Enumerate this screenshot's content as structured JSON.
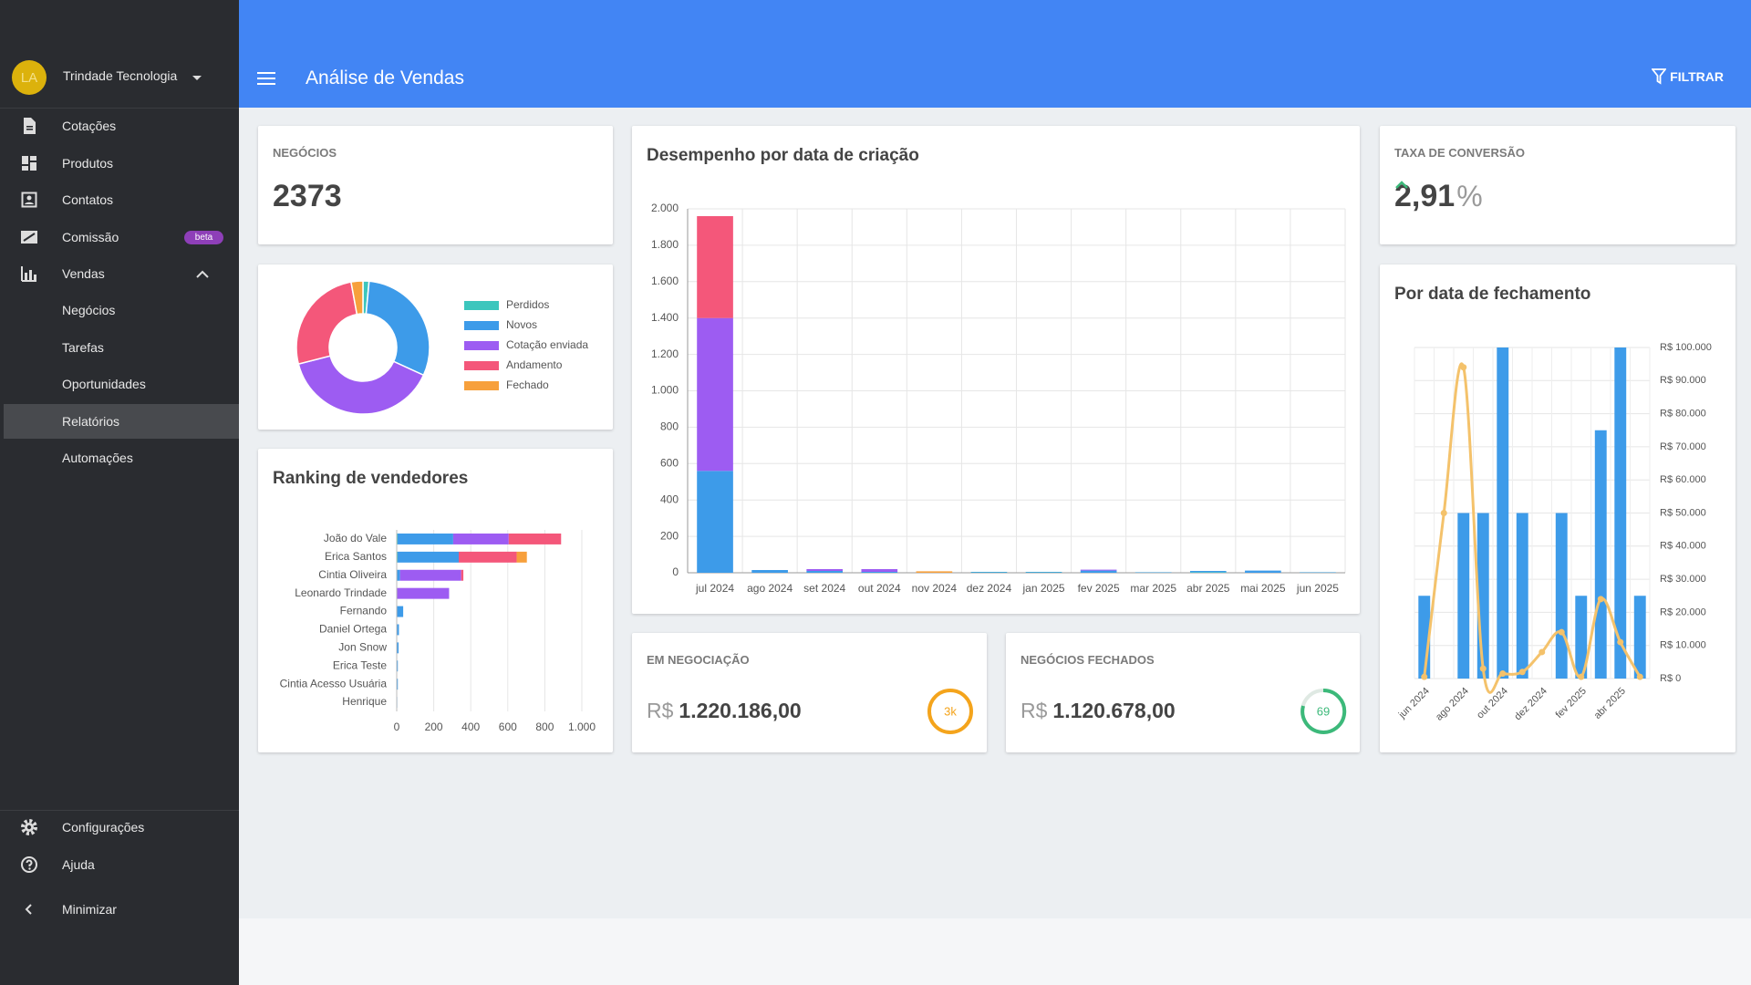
{
  "sidebar": {
    "avatar": "LA",
    "company": "Trindade Tecnologia",
    "menu": [
      "Cotações",
      "Produtos",
      "Contatos",
      "Comissão",
      "Vendas"
    ],
    "badge": "beta",
    "submenu": [
      "Negócios",
      "Tarefas",
      "Oportunidades",
      "Relatórios",
      "Automações"
    ],
    "footer": [
      "Configurações",
      "Ajuda",
      "Minimizar"
    ]
  },
  "header": {
    "title": "Análise de Vendas",
    "filter": "FILTRAR"
  },
  "kpis": {
    "deals": {
      "label": "NEGÓCIOS",
      "value": "2373"
    },
    "conversion": {
      "label": "TAXA DE CONVERSÃO",
      "value": "2,91",
      "unit": "%"
    },
    "negotiating": {
      "label": "EM NEGOCIAÇÃO",
      "currency": "R$",
      "value": "1.220.186,00",
      "badge": "3k"
    },
    "closed": {
      "label": "NEGÓCIOS FECHADOS",
      "currency": "R$",
      "value": "1.120.678,00",
      "badge": "69"
    }
  },
  "chart_data": [
    {
      "type": "donut",
      "categories": [
        "Perdidos",
        "Novos",
        "Cotação enviada",
        "Andamento",
        "Fechado"
      ],
      "values": [
        35,
        720,
        930,
        620,
        68
      ],
      "colors": [
        "#3cc6bd",
        "#3d9be9",
        "#9d5cf2",
        "#f4577a",
        "#f7a03c"
      ],
      "legend": "right"
    },
    {
      "type": "bar",
      "horizontal": true,
      "stacked": true,
      "title": "Ranking de vendedores",
      "categories": [
        "João do Vale",
        "Erica Santos",
        "Cintia Oliveira",
        "Leonardo Trindade",
        "Fernando",
        "Daniel Ortega",
        "Jon Snow",
        "Erica Teste",
        "Cintia Acesso Usuária",
        "Henrique"
      ],
      "series": [
        {
          "color": "#3cc6bd",
          "values": [
            5,
            5,
            0,
            0,
            0,
            0,
            0,
            0,
            0,
            0
          ]
        },
        {
          "color": "#3d9be9",
          "values": [
            300,
            330,
            18,
            0,
            35,
            12,
            10,
            6,
            6,
            3
          ]
        },
        {
          "color": "#9d5cf2",
          "values": [
            300,
            0,
            330,
            283,
            0,
            0,
            0,
            0,
            0,
            0
          ]
        },
        {
          "color": "#f4577a",
          "values": [
            283,
            313,
            12,
            0,
            0,
            0,
            0,
            0,
            0,
            0
          ]
        },
        {
          "color": "#f7a03c",
          "values": [
            0,
            55,
            0,
            0,
            0,
            0,
            0,
            0,
            0,
            0
          ]
        }
      ],
      "xlim": [
        0,
        1000
      ],
      "xticks": [
        0,
        200,
        400,
        600,
        800,
        {
          "value": 1000,
          "label": "1.000"
        }
      ],
      "grid": true
    },
    {
      "type": "bar",
      "stacked": true,
      "title": "Desempenho por data de criação",
      "categories": [
        "jul 2024",
        "ago 2024",
        "set 2024",
        "out 2024",
        "nov 2024",
        "dez 2024",
        "jan 2025",
        "fev 2025",
        "mar 2025",
        "abr 2025",
        "mai 2025",
        "jun 2025"
      ],
      "series": [
        {
          "color": "#3cc6bd",
          "values": [
            0,
            0,
            0,
            0,
            0,
            2,
            2,
            0,
            1,
            3,
            0,
            1
          ]
        },
        {
          "color": "#3d9be9",
          "values": [
            560,
            15,
            10,
            5,
            0,
            3,
            3,
            12,
            2,
            7,
            12,
            2
          ]
        },
        {
          "color": "#9d5cf2",
          "values": [
            840,
            0,
            10,
            15,
            0,
            0,
            0,
            5,
            0,
            0,
            0,
            0
          ]
        },
        {
          "color": "#f4577a",
          "values": [
            560,
            0,
            0,
            0,
            0,
            0,
            0,
            0,
            0,
            0,
            0,
            0
          ]
        },
        {
          "color": "#f7a03c",
          "values": [
            0,
            0,
            0,
            0,
            8,
            0,
            0,
            0,
            0,
            0,
            0,
            0
          ]
        }
      ],
      "ylim": [
        0,
        2000
      ],
      "yticks": [
        0,
        200,
        400,
        600,
        800,
        {
          "value": 1000,
          "label": "1.000"
        },
        {
          "value": 1200,
          "label": "1.200"
        },
        {
          "value": 1400,
          "label": "1.400"
        },
        {
          "value": 1600,
          "label": "1.600"
        },
        {
          "value": 1800,
          "label": "1.800"
        },
        {
          "value": 2000,
          "label": "2.000"
        }
      ],
      "grid": true
    },
    {
      "type": "combo",
      "title": "Por data de fechamento",
      "categories": [
        "jun 2024",
        null,
        "ago 2024",
        null,
        "out 2024",
        null,
        "dez 2024",
        null,
        "fev 2025",
        null,
        "abr 2025",
        null
      ],
      "series": [
        {
          "type": "bar",
          "color": "#3d9be9",
          "values": [
            25000,
            0,
            50000,
            50000,
            100000,
            50000,
            0,
            50000,
            25000,
            75000,
            100000,
            25000
          ]
        },
        {
          "type": "line",
          "color": "#f4c26b",
          "values": [
            500,
            50000,
            94000,
            3000,
            1500,
            2000,
            8000,
            14000,
            500,
            24000,
            11000,
            500
          ]
        }
      ],
      "ylim": [
        0,
        100000
      ],
      "yticks": [
        {
          "value": 0,
          "label": "R$ 0"
        },
        {
          "value": 10000,
          "label": "R$ 10.000"
        },
        {
          "value": 20000,
          "label": "R$ 20.000"
        },
        {
          "value": 30000,
          "label": "R$ 30.000"
        },
        {
          "value": 40000,
          "label": "R$ 40.000"
        },
        {
          "value": 50000,
          "label": "R$ 50.000"
        },
        {
          "value": 60000,
          "label": "R$ 60.000"
        },
        {
          "value": 70000,
          "label": "R$ 70.000"
        },
        {
          "value": 80000,
          "label": "R$ 80.000"
        },
        {
          "value": 90000,
          "label": "R$ 90.000"
        },
        {
          "value": 100000,
          "label": "R$ 100.000"
        }
      ],
      "grid": true,
      "axis_side": "right"
    }
  ]
}
